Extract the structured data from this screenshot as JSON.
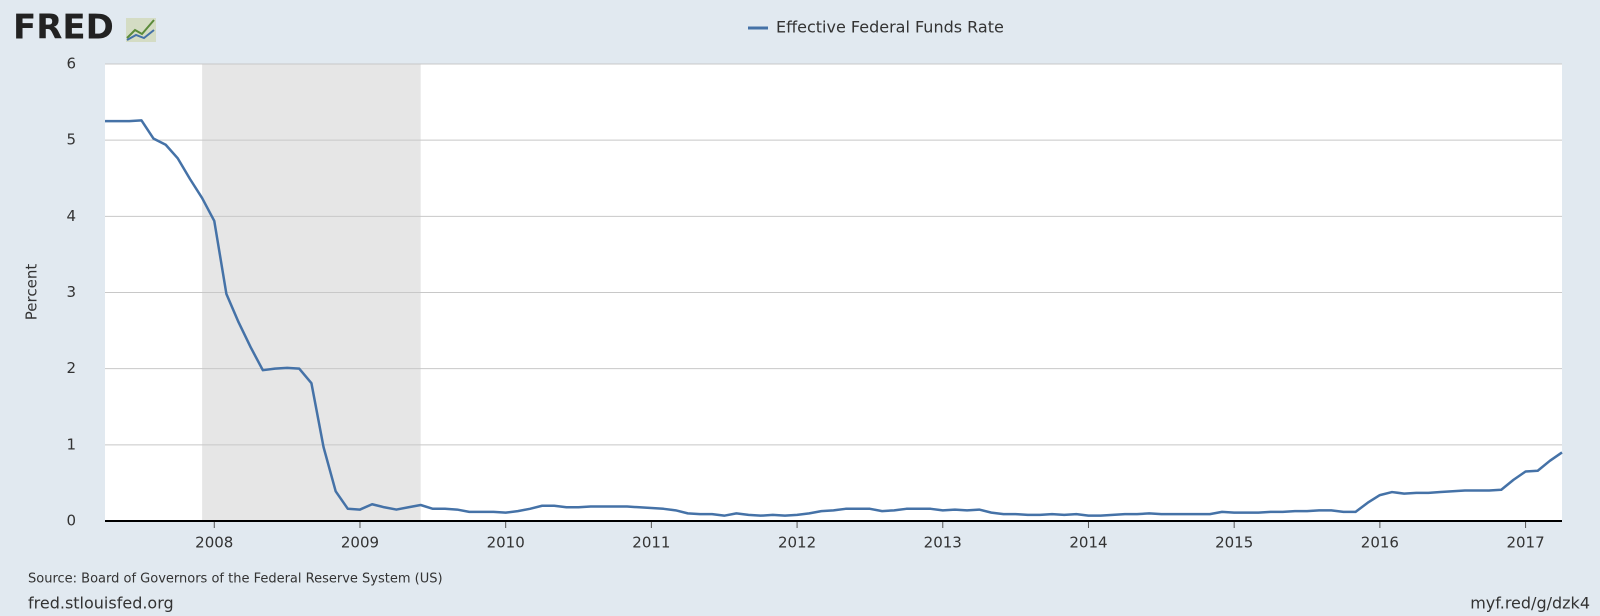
{
  "logo": "FRED",
  "source": "Source: Board of Governors of the Federal Reserve System (US)",
  "site": "fred.stlouisfed.org",
  "short_link": "myf.red/g/dzk4",
  "chart_data": {
    "type": "line",
    "ylabel": "Percent",
    "x": [
      "2007-04",
      "2007-05",
      "2007-06",
      "2007-07",
      "2007-08",
      "2007-09",
      "2007-10",
      "2007-11",
      "2007-12",
      "2008-01",
      "2008-02",
      "2008-03",
      "2008-04",
      "2008-05",
      "2008-06",
      "2008-07",
      "2008-08",
      "2008-09",
      "2008-10",
      "2008-11",
      "2008-12",
      "2009-01",
      "2009-02",
      "2009-03",
      "2009-04",
      "2009-05",
      "2009-06",
      "2009-07",
      "2009-08",
      "2009-09",
      "2009-10",
      "2009-11",
      "2009-12",
      "2010-01",
      "2010-02",
      "2010-03",
      "2010-04",
      "2010-05",
      "2010-06",
      "2010-07",
      "2010-08",
      "2010-09",
      "2010-10",
      "2010-11",
      "2010-12",
      "2011-01",
      "2011-02",
      "2011-03",
      "2011-04",
      "2011-05",
      "2011-06",
      "2011-07",
      "2011-08",
      "2011-09",
      "2011-10",
      "2011-11",
      "2011-12",
      "2012-01",
      "2012-02",
      "2012-03",
      "2012-04",
      "2012-05",
      "2012-06",
      "2012-07",
      "2012-08",
      "2012-09",
      "2012-10",
      "2012-11",
      "2012-12",
      "2013-01",
      "2013-02",
      "2013-03",
      "2013-04",
      "2013-05",
      "2013-06",
      "2013-07",
      "2013-08",
      "2013-09",
      "2013-10",
      "2013-11",
      "2013-12",
      "2014-01",
      "2014-02",
      "2014-03",
      "2014-04",
      "2014-05",
      "2014-06",
      "2014-07",
      "2014-08",
      "2014-09",
      "2014-10",
      "2014-11",
      "2014-12",
      "2015-01",
      "2015-02",
      "2015-03",
      "2015-04",
      "2015-05",
      "2015-06",
      "2015-07",
      "2015-08",
      "2015-09",
      "2015-10",
      "2015-11",
      "2015-12",
      "2016-01",
      "2016-02",
      "2016-03",
      "2016-04",
      "2016-05",
      "2016-06",
      "2016-07",
      "2016-08",
      "2016-09",
      "2016-10",
      "2016-11",
      "2016-12",
      "2017-01",
      "2017-02",
      "2017-03",
      "2017-04"
    ],
    "series": [
      {
        "name": "Effective Federal Funds Rate",
        "color": "#4572a7",
        "values": [
          5.25,
          5.25,
          5.25,
          5.26,
          5.02,
          4.94,
          4.76,
          4.49,
          4.24,
          3.94,
          2.98,
          2.61,
          2.28,
          1.98,
          2.0,
          2.01,
          2.0,
          1.81,
          0.97,
          0.39,
          0.16,
          0.15,
          0.22,
          0.18,
          0.15,
          0.18,
          0.21,
          0.16,
          0.16,
          0.15,
          0.12,
          0.12,
          0.12,
          0.11,
          0.13,
          0.16,
          0.2,
          0.2,
          0.18,
          0.18,
          0.19,
          0.19,
          0.19,
          0.19,
          0.18,
          0.17,
          0.16,
          0.14,
          0.1,
          0.09,
          0.09,
          0.07,
          0.1,
          0.08,
          0.07,
          0.08,
          0.07,
          0.08,
          0.1,
          0.13,
          0.14,
          0.16,
          0.16,
          0.16,
          0.13,
          0.14,
          0.16,
          0.16,
          0.16,
          0.14,
          0.15,
          0.14,
          0.15,
          0.11,
          0.09,
          0.09,
          0.08,
          0.08,
          0.09,
          0.08,
          0.09,
          0.07,
          0.07,
          0.08,
          0.09,
          0.09,
          0.1,
          0.09,
          0.09,
          0.09,
          0.09,
          0.09,
          0.12,
          0.11,
          0.11,
          0.11,
          0.12,
          0.12,
          0.13,
          0.13,
          0.14,
          0.14,
          0.12,
          0.12,
          0.24,
          0.34,
          0.38,
          0.36,
          0.37,
          0.37,
          0.38,
          0.39,
          0.4,
          0.4,
          0.4,
          0.41,
          0.54,
          0.65,
          0.66,
          0.79,
          0.9
        ]
      }
    ],
    "xlim": [
      "2007-04",
      "2017-04"
    ],
    "xticks": [
      {
        "value": "2008-01",
        "label": "2008"
      },
      {
        "value": "2009-01",
        "label": "2009"
      },
      {
        "value": "2010-01",
        "label": "2010"
      },
      {
        "value": "2011-01",
        "label": "2011"
      },
      {
        "value": "2012-01",
        "label": "2012"
      },
      {
        "value": "2013-01",
        "label": "2013"
      },
      {
        "value": "2014-01",
        "label": "2014"
      },
      {
        "value": "2015-01",
        "label": "2015"
      },
      {
        "value": "2016-01",
        "label": "2016"
      },
      {
        "value": "2017-01",
        "label": "2017"
      }
    ],
    "ylim": [
      0,
      6
    ],
    "yticks": [
      0,
      1,
      2,
      3,
      4,
      5,
      6
    ],
    "grid": true,
    "recession": [
      "2007-12",
      "2009-06"
    ]
  }
}
